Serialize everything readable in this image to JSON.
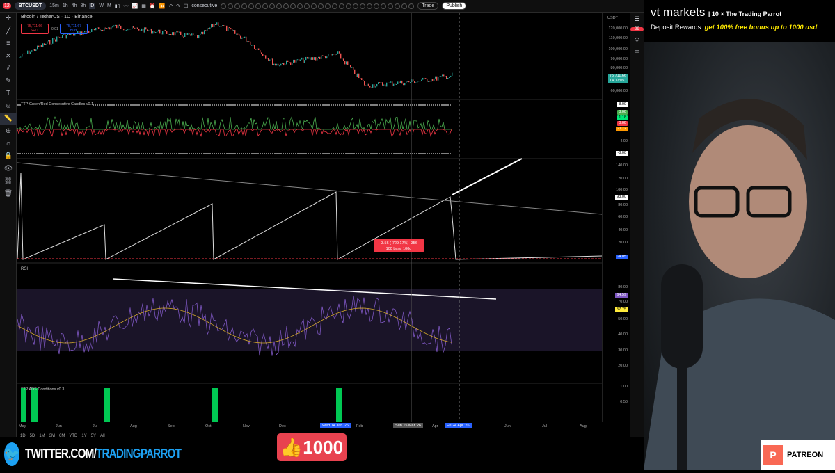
{
  "toolbar": {
    "notif_count": "12",
    "symbol": "BTCUSDT",
    "timeframes": [
      "15m",
      "1h",
      "4h",
      "8h",
      "D",
      "W",
      "M"
    ],
    "active_tf": "D",
    "search_text": "consecutive",
    "trade": "Trade",
    "publish": "Publish"
  },
  "chart": {
    "title": "Bitcoin / TetherUS · 1D · Binance",
    "sell_price": "75,711.66",
    "sell_label": "SELL",
    "spread": "0.01",
    "buy_price": "75,711.67",
    "buy_label": "BUY",
    "currency": "USDT",
    "price_axis": [
      "120,000.00",
      "110,000.00",
      "100,000.00",
      "90,000.00",
      "80,000.00",
      "60,000.00"
    ],
    "last_price": "75,711.66",
    "countdown": "14:17:05",
    "ind1_title": "TTP Green/Red Consecutive Candles v0.1",
    "ind1_axis": [
      "8.00",
      "-4.00",
      "-8.00"
    ],
    "ind1_tags": [
      "3.00",
      "1.18",
      "0.00",
      "-0.72"
    ],
    "ind2_axis": [
      "140.00",
      "120.00",
      "100.00",
      "80.00",
      "60.00",
      "40.00",
      "20.00"
    ],
    "ind2_tag": "93.00",
    "ind2_low": "-4.05",
    "measure_line1": "-3.56 (-729.17%) -356",
    "measure_line2": "100 bars, 100d",
    "rsi_title": "RSI",
    "rsi_axis": [
      "80.00",
      "70.00",
      "60.00",
      "50.00",
      "40.00",
      "30.00",
      "20.00"
    ],
    "rsi_value": "64.59",
    "rsi_ma": "57.75",
    "ads_title": "TTP ADS Conditions v0.3",
    "ads_axis": [
      "1.00",
      "0.50"
    ],
    "time_axis": [
      "May",
      "Jun",
      "Jul",
      "Aug",
      "Sep",
      "Oct",
      "Nov",
      "Dec",
      "Feb",
      "Apr",
      "Jun",
      "Jul",
      "Aug"
    ],
    "time_tags": [
      "Wed 14 Jan '26",
      "Sun 15 Mar '26",
      "Fri 24 Apr '26"
    ],
    "ranges": [
      "1D",
      "5D",
      "1M",
      "3M",
      "6M",
      "YTD",
      "1Y",
      "5Y",
      "All"
    ]
  },
  "banner": {
    "brand": "vt markets",
    "partner": "The Trading Parrot",
    "deposit": "Deposit Rewards:",
    "offer": "get 100% free bonus up to 1000 usd"
  },
  "overlay": {
    "twitter_prefix": "TWITTER.COM/",
    "twitter_handle": "TRADINGPARROT",
    "likes": "1000",
    "patreon": "PATREON"
  },
  "colors": {
    "up": "#26a69a",
    "down": "#ef5350",
    "rsi": "#7e57c2",
    "accent": "#2962ff"
  }
}
